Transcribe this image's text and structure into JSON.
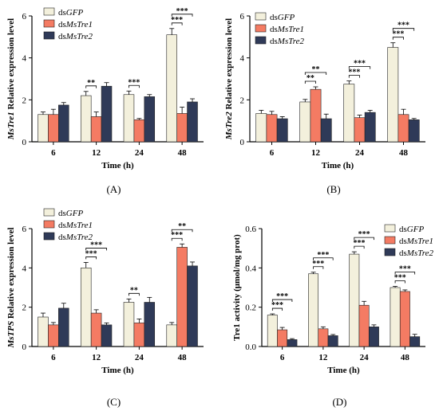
{
  "chart_data": [
    {
      "type": "bar",
      "panel_label": "(A)",
      "ylabel_italic": "MsTre1",
      "ylabel_rest": " Relative expression level",
      "xlabel": "Time (h)",
      "categories": [
        "6",
        "12",
        "24",
        "48"
      ],
      "ylim": [
        0,
        6
      ],
      "yticks": [
        "0",
        "2",
        "4",
        "6"
      ],
      "grid": false,
      "legend_position": "top-left",
      "series": [
        {
          "prefix": "ds",
          "italic": "GFP",
          "color": "#f3f0dc",
          "values": [
            1.3,
            2.2,
            2.25,
            5.1
          ],
          "errors": [
            0.12,
            0.2,
            0.17,
            0.3
          ]
        },
        {
          "prefix": "ds",
          "italic": "MsTre1",
          "color": "#f47b63",
          "values": [
            1.3,
            1.2,
            1.05,
            1.35
          ],
          "errors": [
            0.25,
            0.22,
            0.06,
            0.3
          ]
        },
        {
          "prefix": "ds",
          "italic": "MsTre2",
          "color": "#2f3a58",
          "values": [
            1.75,
            2.65,
            2.15,
            1.9
          ],
          "errors": [
            0.12,
            0.17,
            0.1,
            0.15
          ]
        }
      ],
      "annotations": [
        {
          "category": 1,
          "from": 0,
          "to": 1,
          "text": "**"
        },
        {
          "category": 2,
          "from": 0,
          "to": 1,
          "text": "***"
        },
        {
          "category": 3,
          "from": 0,
          "to": 1,
          "text": "***"
        },
        {
          "category": 3,
          "from": 0,
          "to": 2,
          "text": "***"
        }
      ]
    },
    {
      "type": "bar",
      "panel_label": "(B)",
      "ylabel_italic": "MsTre2",
      "ylabel_rest": " Relative expression level",
      "xlabel": "Time (h)",
      "categories": [
        "6",
        "12",
        "24",
        "48"
      ],
      "ylim": [
        0,
        6
      ],
      "yticks": [
        "0",
        "2",
        "4",
        "6"
      ],
      "grid": false,
      "legend_position": "top-left",
      "series": [
        {
          "prefix": "ds",
          "italic": "GFP",
          "color": "#f3f0dc",
          "values": [
            1.35,
            1.9,
            2.75,
            4.5
          ],
          "errors": [
            0.15,
            0.12,
            0.15,
            0.22
          ]
        },
        {
          "prefix": "ds",
          "italic": "MsTre1",
          "color": "#f47b63",
          "values": [
            1.3,
            2.5,
            1.15,
            1.3
          ],
          "errors": [
            0.15,
            0.12,
            0.12,
            0.25
          ]
        },
        {
          "prefix": "ds",
          "italic": "MsTre2",
          "color": "#2f3a58",
          "values": [
            1.1,
            1.1,
            1.4,
            1.05
          ],
          "errors": [
            0.1,
            0.22,
            0.1,
            0.06
          ]
        }
      ],
      "annotations": [
        {
          "category": 1,
          "from": 0,
          "to": 1,
          "text": "**"
        },
        {
          "category": 1,
          "from": 0,
          "to": 2,
          "text": "**"
        },
        {
          "category": 2,
          "from": 0,
          "to": 1,
          "text": "***"
        },
        {
          "category": 2,
          "from": 0,
          "to": 2,
          "text": "***"
        },
        {
          "category": 3,
          "from": 0,
          "to": 1,
          "text": "***"
        },
        {
          "category": 3,
          "from": 0,
          "to": 2,
          "text": "***"
        }
      ]
    },
    {
      "type": "bar",
      "panel_label": "(C)",
      "ylabel_italic": "MsTPS",
      "ylabel_rest": " Relative expression level",
      "xlabel": "Time (h)",
      "categories": [
        "6",
        "12",
        "24",
        "48"
      ],
      "ylim": [
        0,
        6
      ],
      "yticks": [
        "0",
        "2",
        "4",
        "6"
      ],
      "grid": false,
      "legend_position": "top-left",
      "series": [
        {
          "prefix": "ds",
          "italic": "GFP",
          "color": "#f3f0dc",
          "values": [
            1.5,
            4.0,
            2.25,
            1.1
          ],
          "errors": [
            0.2,
            0.28,
            0.17,
            0.12
          ]
        },
        {
          "prefix": "ds",
          "italic": "MsTre1",
          "color": "#f47b63",
          "values": [
            1.1,
            1.7,
            1.2,
            5.05
          ],
          "errors": [
            0.12,
            0.17,
            0.2,
            0.17
          ]
        },
        {
          "prefix": "ds",
          "italic": "MsTre2",
          "color": "#2f3a58",
          "values": [
            1.95,
            1.1,
            2.25,
            4.1
          ],
          "errors": [
            0.25,
            0.1,
            0.25,
            0.2
          ]
        }
      ],
      "annotations": [
        {
          "category": 1,
          "from": 0,
          "to": 1,
          "text": "***"
        },
        {
          "category": 1,
          "from": 0,
          "to": 2,
          "text": "***"
        },
        {
          "category": 2,
          "from": 0,
          "to": 1,
          "text": "**"
        },
        {
          "category": 3,
          "from": 0,
          "to": 1,
          "text": "***"
        },
        {
          "category": 3,
          "from": 0,
          "to": 2,
          "text": "**"
        }
      ]
    },
    {
      "type": "bar",
      "panel_label": "(D)",
      "ylabel_italic": "",
      "ylabel_rest": "Tre1 activity (μmol/mg prot)",
      "xlabel": "Time (h)",
      "categories": [
        "6",
        "12",
        "24",
        "48"
      ],
      "ylim": [
        0,
        0.6
      ],
      "yticks": [
        "0.0",
        "0.2",
        "0.4",
        "0.6"
      ],
      "grid": false,
      "legend_position": "top-right",
      "series": [
        {
          "prefix": "ds",
          "italic": "GFP",
          "color": "#f3f0dc",
          "values": [
            0.16,
            0.37,
            0.47,
            0.3
          ],
          "errors": [
            0.006,
            0.008,
            0.012,
            0.006
          ]
        },
        {
          "prefix": "ds",
          "italic": "MsTre1",
          "color": "#f47b63",
          "values": [
            0.085,
            0.09,
            0.21,
            0.28
          ],
          "errors": [
            0.012,
            0.01,
            0.02,
            0.008
          ]
        },
        {
          "prefix": "ds",
          "italic": "MsTre2",
          "color": "#2f3a58",
          "values": [
            0.035,
            0.055,
            0.1,
            0.05
          ],
          "errors": [
            0.005,
            0.006,
            0.01,
            0.012
          ]
        }
      ],
      "annotations": [
        {
          "category": 0,
          "from": 0,
          "to": 1,
          "text": "***"
        },
        {
          "category": 0,
          "from": 0,
          "to": 2,
          "text": "***"
        },
        {
          "category": 1,
          "from": 0,
          "to": 1,
          "text": "***"
        },
        {
          "category": 1,
          "from": 0,
          "to": 2,
          "text": "***"
        },
        {
          "category": 2,
          "from": 0,
          "to": 1,
          "text": "***"
        },
        {
          "category": 2,
          "from": 0,
          "to": 2,
          "text": "***"
        },
        {
          "category": 3,
          "from": 0,
          "to": 1,
          "text": "***"
        },
        {
          "category": 3,
          "from": 0,
          "to": 2,
          "text": "***"
        }
      ]
    }
  ]
}
